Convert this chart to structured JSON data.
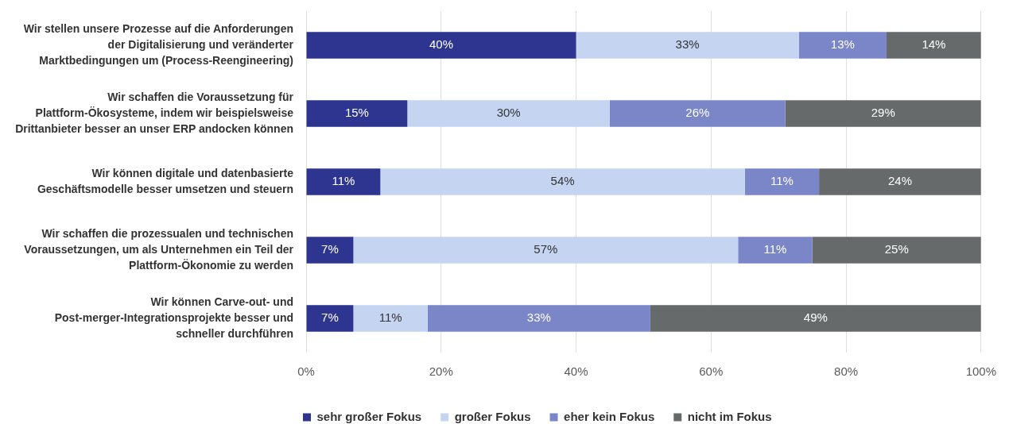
{
  "chart_data": {
    "type": "bar",
    "orientation": "horizontal",
    "stacked": true,
    "categories": [
      "Wir stellen unsere Prozesse auf die Anforderungen der Digitalisierung und veränderter Marktbedingungen um (Process-Reengineering)",
      "Wir schaffen die Voraussetzung für Plattform-Ökosysteme, indem wir beispielsweise Drittanbieter besser an unser ERP andocken können",
      "Wir können digitale und datenbasierte Geschäftsmodelle besser umsetzen und steuern",
      "Wir schaffen die prozessualen und technischen Voraussetzungen, um als Unternehmen ein Teil der Plattform-Ökonomie zu werden",
      "Wir können Carve-out- und Post-merger-Integrationsprojekte besser und schneller durchführen"
    ],
    "series": [
      {
        "name": "sehr großer Fokus",
        "color": "#2e3591",
        "values": [
          40,
          15,
          11,
          7,
          7
        ],
        "value_labels": [
          "40%",
          "15%",
          "11%",
          "7%",
          "7%"
        ]
      },
      {
        "name": "großer Fokus",
        "color": "#c4d4f1",
        "values": [
          33,
          30,
          54,
          57,
          11
        ],
        "value_labels": [
          "33%",
          "30%",
          "54%",
          "57%",
          "11%"
        ]
      },
      {
        "name": "eher kein Fokus",
        "color": "#7a86c8",
        "values": [
          13,
          26,
          11,
          11,
          33
        ],
        "value_labels": [
          "13%",
          "26%",
          "11%",
          "11%",
          "33%"
        ]
      },
      {
        "name": "nicht im Fokus",
        "color": "#666a6b",
        "values": [
          14,
          29,
          24,
          25,
          49
        ],
        "value_labels": [
          "14%",
          "29%",
          "24%",
          "25%",
          "49%"
        ]
      }
    ],
    "xlim": [
      0,
      100
    ],
    "xticks": [
      {
        "value": 0,
        "label": "0%"
      },
      {
        "value": 20,
        "label": "20%"
      },
      {
        "value": 40,
        "label": "40%"
      },
      {
        "value": 60,
        "label": "60%"
      },
      {
        "value": 80,
        "label": "80%"
      },
      {
        "value": 100,
        "label": "100%"
      }
    ],
    "grid": "x",
    "legend": "bottom"
  }
}
